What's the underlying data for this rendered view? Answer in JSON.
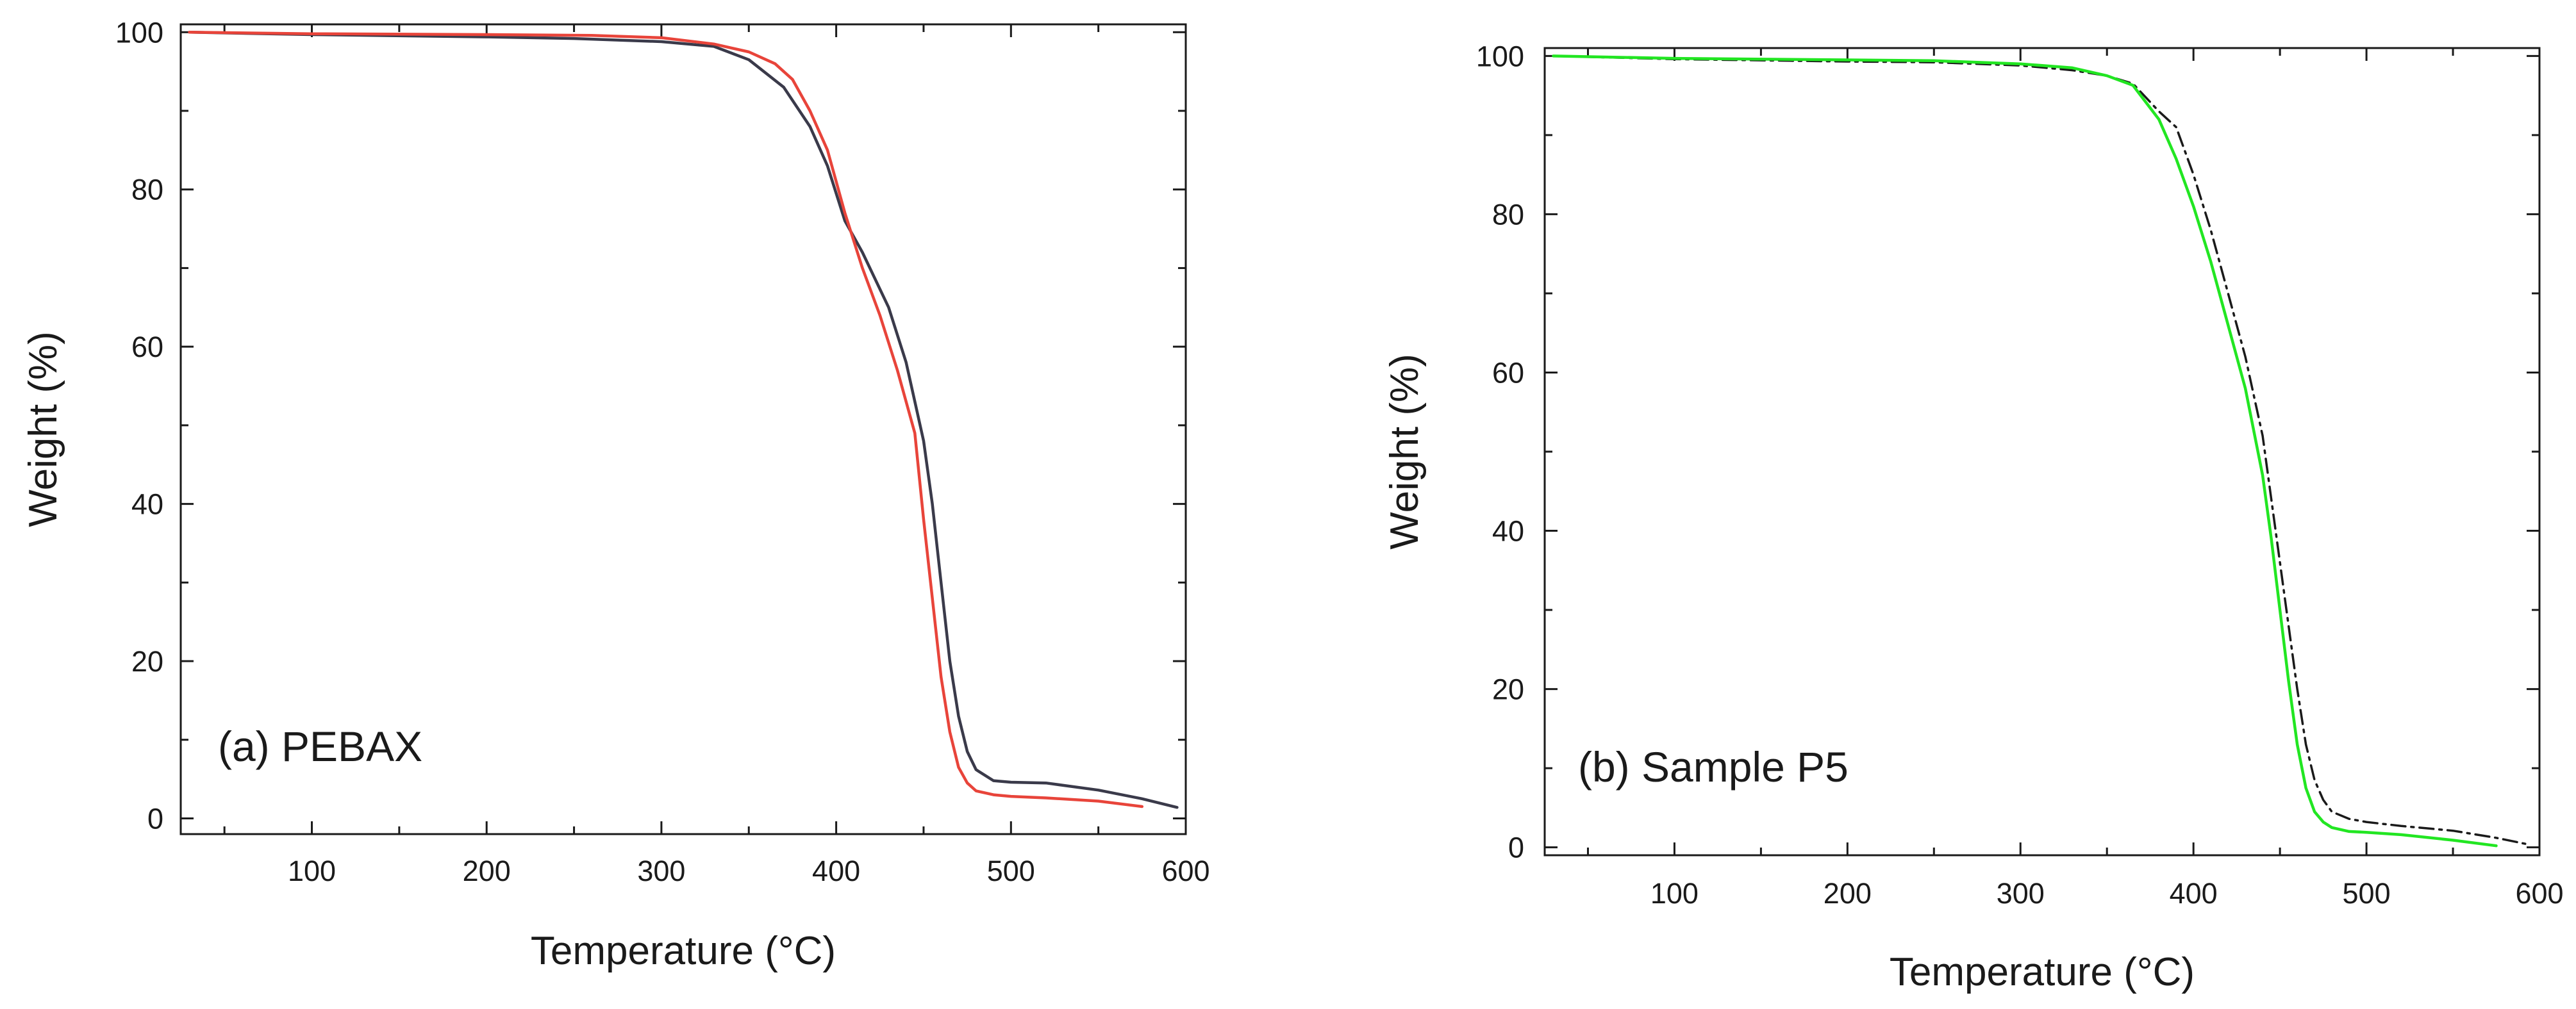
{
  "chart_data": [
    {
      "type": "line",
      "panel_label": "(a) PEBAX",
      "xlabel": "Temperature (°C)",
      "ylabel": "Weight (%)",
      "xlim": [
        25,
        600
      ],
      "ylim": [
        -2,
        101
      ],
      "xticks": [
        100,
        200,
        300,
        400,
        500,
        600
      ],
      "yticks": [
        0,
        20,
        40,
        60,
        80,
        100
      ],
      "grid": false,
      "series": [
        {
          "name": "dark curve",
          "color": "#3a3a4a",
          "style": "solid",
          "x": [
            30,
            100,
            200,
            250,
            300,
            330,
            350,
            370,
            385,
            395,
            405,
            415,
            430,
            440,
            450,
            455,
            460,
            465,
            470,
            475,
            480,
            490,
            500,
            520,
            550,
            575,
            595
          ],
          "y": [
            100,
            99.7,
            99.4,
            99.2,
            98.8,
            98.2,
            96.5,
            93,
            88,
            83,
            76,
            72,
            65,
            58,
            48,
            40,
            30,
            20,
            13,
            8.5,
            6.2,
            4.8,
            4.6,
            4.5,
            3.6,
            2.5,
            1.4
          ]
        },
        {
          "name": "red curve",
          "color": "#e8443a",
          "style": "solid",
          "x": [
            30,
            100,
            200,
            260,
            300,
            330,
            350,
            365,
            375,
            385,
            395,
            405,
            415,
            425,
            435,
            445,
            450,
            455,
            460,
            465,
            470,
            475,
            480,
            490,
            500,
            520,
            550,
            575
          ],
          "y": [
            100,
            99.8,
            99.7,
            99.6,
            99.3,
            98.5,
            97.5,
            96,
            94,
            90,
            85,
            77,
            70,
            64,
            57,
            49,
            38,
            28,
            18,
            11,
            6.5,
            4.5,
            3.5,
            3.0,
            2.8,
            2.6,
            2.2,
            1.5
          ]
        }
      ]
    },
    {
      "type": "line",
      "panel_label": "(b) Sample P5",
      "xlabel": "Temperature (°C)",
      "ylabel": "Weight (%)",
      "xlim": [
        25,
        600
      ],
      "ylim": [
        -1,
        101
      ],
      "xticks": [
        100,
        200,
        300,
        400,
        500,
        600
      ],
      "yticks": [
        0,
        20,
        40,
        60,
        80,
        100
      ],
      "grid": false,
      "series": [
        {
          "name": "dash-dot curve",
          "color": "#1a1a1a",
          "style": "dashdot",
          "x": [
            30,
            100,
            200,
            250,
            300,
            330,
            350,
            365,
            380,
            390,
            400,
            410,
            420,
            430,
            440,
            445,
            450,
            455,
            460,
            465,
            470,
            475,
            480,
            490,
            500,
            520,
            550,
            575,
            595
          ],
          "y": [
            100,
            99.6,
            99.3,
            99.2,
            98.8,
            98.2,
            97.5,
            96.5,
            93,
            91,
            85,
            78,
            70,
            62,
            52,
            44,
            36,
            28,
            20,
            13,
            8.5,
            6,
            4.5,
            3.6,
            3.2,
            2.7,
            2.1,
            1.2,
            0.3
          ]
        },
        {
          "name": "green curve",
          "color": "#22e622",
          "style": "solid",
          "x": [
            30,
            100,
            200,
            250,
            300,
            330,
            350,
            365,
            380,
            390,
            400,
            410,
            420,
            430,
            440,
            445,
            450,
            455,
            460,
            465,
            470,
            475,
            480,
            490,
            500,
            520,
            550,
            575
          ],
          "y": [
            100,
            99.7,
            99.5,
            99.4,
            99.0,
            98.5,
            97.5,
            96.3,
            92,
            87,
            81,
            74,
            66,
            58,
            47,
            39,
            30,
            21,
            13,
            7.5,
            4.5,
            3.2,
            2.5,
            2.0,
            1.9,
            1.6,
            0.9,
            0.2
          ]
        }
      ]
    }
  ]
}
